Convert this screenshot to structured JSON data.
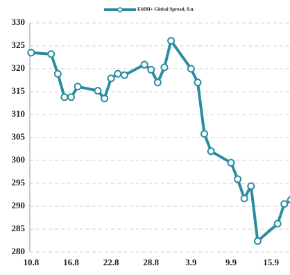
{
  "chart_data": {
    "type": "line",
    "x": [
      0,
      3,
      4,
      5,
      6,
      7,
      10,
      11,
      12,
      13,
      14,
      17,
      18,
      19,
      20,
      21,
      24,
      25,
      26,
      27,
      30,
      31,
      32,
      33,
      34,
      37,
      38,
      39
    ],
    "series": [
      {
        "name": "EMBI+ Global Spread, б.п.",
        "color": "#2a8ca0",
        "values": [
          323.5,
          323.2,
          318.9,
          313.8,
          313.8,
          316.1,
          315.2,
          313.5,
          317.9,
          318.9,
          318.6,
          320.9,
          319.8,
          317.0,
          320.3,
          326.1,
          320.0,
          317.0,
          305.8,
          302.0,
          299.5,
          295.9,
          291.7,
          294.4,
          282.4,
          286.2,
          290.5,
          291.4
        ]
      }
    ],
    "xlim": [
      -0.2,
      38.75
    ],
    "xticks": [
      {
        "value": 0,
        "label": "10.8"
      },
      {
        "value": 6,
        "label": "16.8"
      },
      {
        "value": 12,
        "label": "22.8"
      },
      {
        "value": 18,
        "label": "28.8"
      },
      {
        "value": 24,
        "label": "3.9"
      },
      {
        "value": 30,
        "label": "9.9"
      },
      {
        "value": 36,
        "label": "15.9"
      }
    ],
    "ylim": [
      280,
      330
    ],
    "yticks": [
      280,
      285,
      290,
      295,
      300,
      305,
      310,
      315,
      320,
      325,
      330
    ],
    "grid": true
  }
}
